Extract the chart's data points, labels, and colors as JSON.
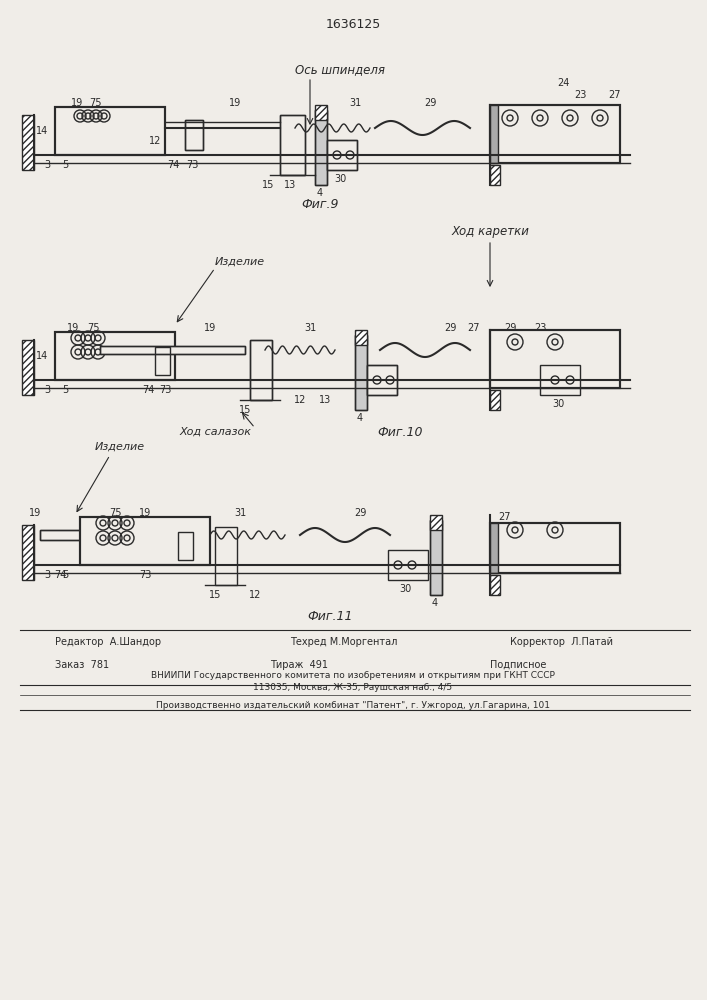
{
  "patent_number": "1636125",
  "background_color": "#f0ede8",
  "line_color": "#2a2a2a",
  "fig9_label": "Фиг.9",
  "fig10_label": "Фиг.10",
  "fig11_label": "Фиг.11",
  "title_spindle": "Ось шпинделя",
  "title_carriage": "Ход каретки",
  "title_slide": "Ход салазок",
  "label_izdelie": "Изделие",
  "footer_editor": "Редактор  А.Шандор",
  "footer_techred": "Техред М.Моргентал",
  "footer_corrector": "Корректор  Л.Патай",
  "footer_order": "Заказ  781",
  "footer_tirazh": "Тираж  491",
  "footer_podpis": "Подписное",
  "footer_vniiipi": "ВНИИПИ Государственного комитета по изобретениям и открытиям при ГКНТ СССР",
  "footer_address": "113035, Москва, Ж-35, Раушская наб., 4/5",
  "footer_proizv": "Производственно издательский комбинат \"Патент\", г. Ужгород, ул.Гагарина, 101"
}
